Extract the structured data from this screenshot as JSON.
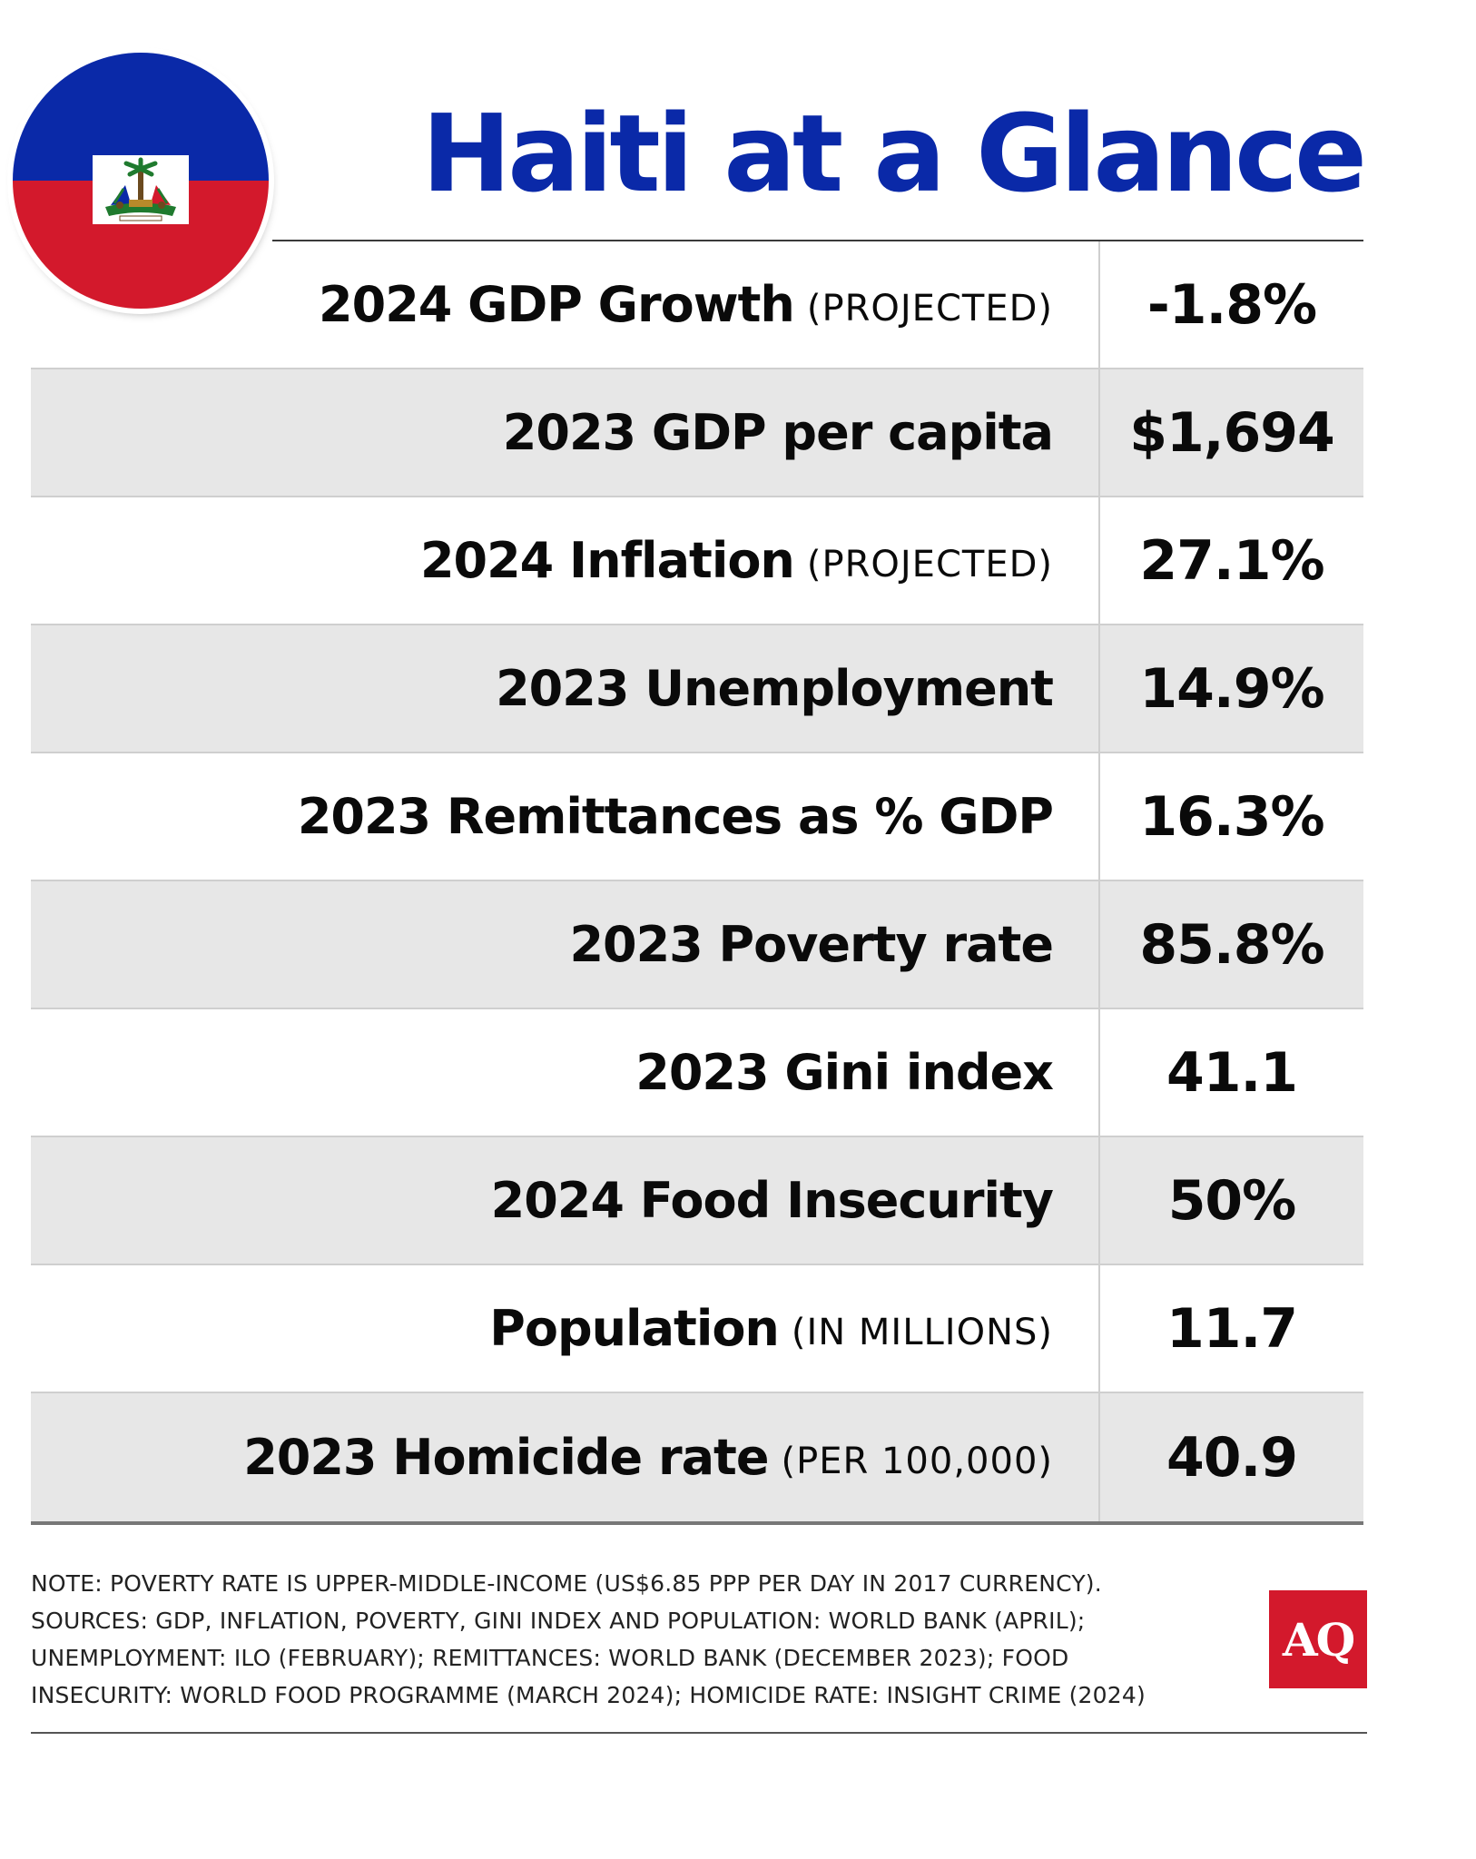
{
  "header": {
    "title": "Haiti at a Glance",
    "flag_colors": {
      "top": "#0a29a8",
      "bottom": "#d3192c",
      "panel": "#ffffff"
    }
  },
  "stats": [
    {
      "label": "2024 GDP Growth",
      "qualifier": "(PROJECTED)",
      "value": "-1.8%"
    },
    {
      "label": "2023 GDP per capita",
      "qualifier": "",
      "value": "$1,694"
    },
    {
      "label": "2024 Inflation",
      "qualifier": "(PROJECTED)",
      "value": "27.1%"
    },
    {
      "label": "2023 Unemployment",
      "qualifier": "",
      "value": "14.9%"
    },
    {
      "label": "2023 Remittances as % GDP",
      "qualifier": "",
      "value": "16.3%"
    },
    {
      "label": "2023 Poverty rate",
      "qualifier": "",
      "value": "85.8%"
    },
    {
      "label": "2023 Gini index",
      "qualifier": "",
      "value": "41.1"
    },
    {
      "label": "2024 Food Insecurity",
      "qualifier": "",
      "value": "50%"
    },
    {
      "label": "Population",
      "qualifier": "(IN MILLIONS)",
      "value": "11.7"
    },
    {
      "label": "2023 Homicide rate",
      "qualifier": "(PER 100,000)",
      "value": "40.9"
    }
  ],
  "footnote": {
    "lines": [
      "NOTE: POVERTY RATE IS UPPER-MIDDLE-INCOME (US$6.85 PPP PER DAY IN 2017 CURRENCY).",
      "SOURCES: GDP, INFLATION, POVERTY, GINI INDEX AND POPULATION: WORLD BANK (APRIL);",
      "UNEMPLOYMENT: ILO (FEBRUARY); REMITTANCES: WORLD BANK (DECEMBER 2023); FOOD",
      "INSECURITY: WORLD FOOD PROGRAMME (MARCH 2024); HOMICIDE RATE: INSIGHT CRIME (2024)"
    ]
  },
  "logo": {
    "text": "AQ",
    "color": "#d3192c"
  }
}
